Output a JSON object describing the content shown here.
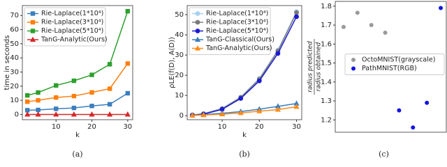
{
  "chart_data": [
    {
      "type": "line",
      "caption": "(a)",
      "xlabel": "k",
      "ylabel": "time in seconds",
      "x": [
        2,
        5,
        10,
        15,
        20,
        25,
        30
      ],
      "xlim": [
        0.6,
        31.4
      ],
      "xticks": [
        10,
        20,
        30
      ],
      "ylim": [
        -3.7,
        77
      ],
      "yticks": [
        0,
        10,
        20,
        30,
        40,
        50,
        60,
        70
      ],
      "legend": "upper left",
      "grid": false,
      "series": [
        {
          "name": "Rie-Laplace(1*10⁴)",
          "color": "#3a7ebf",
          "marker": "square",
          "values": [
            3,
            3.2,
            4,
            4.6,
            6,
            7.2,
            15
          ]
        },
        {
          "name": "Rie-Laplace(3*10⁴)",
          "color": "#ff7f0e",
          "marker": "square",
          "values": [
            9,
            10,
            12,
            13,
            15.6,
            18.2,
            36
          ]
        },
        {
          "name": "Rie-Laplace(5*10⁴)",
          "color": "#2ca02c",
          "marker": "square",
          "values": [
            13.5,
            15.5,
            20.5,
            23.8,
            28,
            35.5,
            73
          ]
        },
        {
          "name": "TanG-Analytic(Ours)",
          "color": "#d62728",
          "marker": "triangle",
          "values": [
            0,
            0,
            0,
            0,
            0,
            0,
            0
          ]
        }
      ]
    },
    {
      "type": "line",
      "caption": "(b)",
      "xlabel": "k",
      "ylabel": "ρLE(f(D), A(D))",
      "x": [
        2,
        5,
        10,
        15,
        20,
        25,
        30
      ],
      "xlim": [
        0.6,
        31.4
      ],
      "xticks": [
        10,
        20,
        30
      ],
      "ylim": [
        -2,
        54.5
      ],
      "yticks": [
        0,
        10,
        20,
        30,
        40,
        50
      ],
      "legend": "upper left",
      "grid": false,
      "series": [
        {
          "name": "Rie-Laplace(1*10⁴)",
          "color": "#a8cfee",
          "marker": "circle",
          "values": [
            0.4,
            1,
            3.6,
            9.2,
            18.5,
            32.5,
            51.5
          ]
        },
        {
          "name": "Rie-Laplace(3*10⁴)",
          "color": "#7a7a7a",
          "marker": "circle",
          "values": [
            0.3,
            0.9,
            3.4,
            9,
            18,
            32,
            51
          ]
        },
        {
          "name": "Rie-Laplace(5*10⁴)",
          "color": "#1c1cd0",
          "marker": "circle",
          "values": [
            0.2,
            0.7,
            3.1,
            8.5,
            17.2,
            30.8,
            49
          ]
        },
        {
          "name": "TanG-Classical(Ours)",
          "color": "#3a7ebf",
          "marker": "triangle",
          "values": [
            0.2,
            0.5,
            1.2,
            2,
            3.2,
            4.6,
            6
          ]
        },
        {
          "name": "TanG-Analytic(Ours)",
          "color": "#ff8c1a",
          "marker": "triangle",
          "values": [
            0.1,
            0.3,
            0.7,
            1.3,
            2.2,
            3,
            4.4
          ]
        }
      ]
    },
    {
      "type": "scatter",
      "caption": "(c)",
      "ylabel": [
        "radius predicted",
        "radius obtained"
      ],
      "xlim": [
        0.4,
        8.4
      ],
      "ylim": [
        1.135,
        1.825
      ],
      "yticks": [
        1.2,
        1.3,
        1.4,
        1.5,
        1.6,
        1.7,
        1.8
      ],
      "legend": "center right",
      "grid": false,
      "series": [
        {
          "name": "OctoMNIST(grayscale)",
          "color": "#9a9a9a",
          "x": [
            1,
            2,
            3,
            4
          ],
          "values": [
            1.69,
            1.765,
            1.7,
            1.66
          ]
        },
        {
          "name": "PathMNIST(RGB)",
          "color": "#1515e0",
          "x": [
            5,
            6,
            7,
            8
          ],
          "values": [
            1.25,
            1.16,
            1.29,
            1.79
          ]
        }
      ]
    }
  ]
}
